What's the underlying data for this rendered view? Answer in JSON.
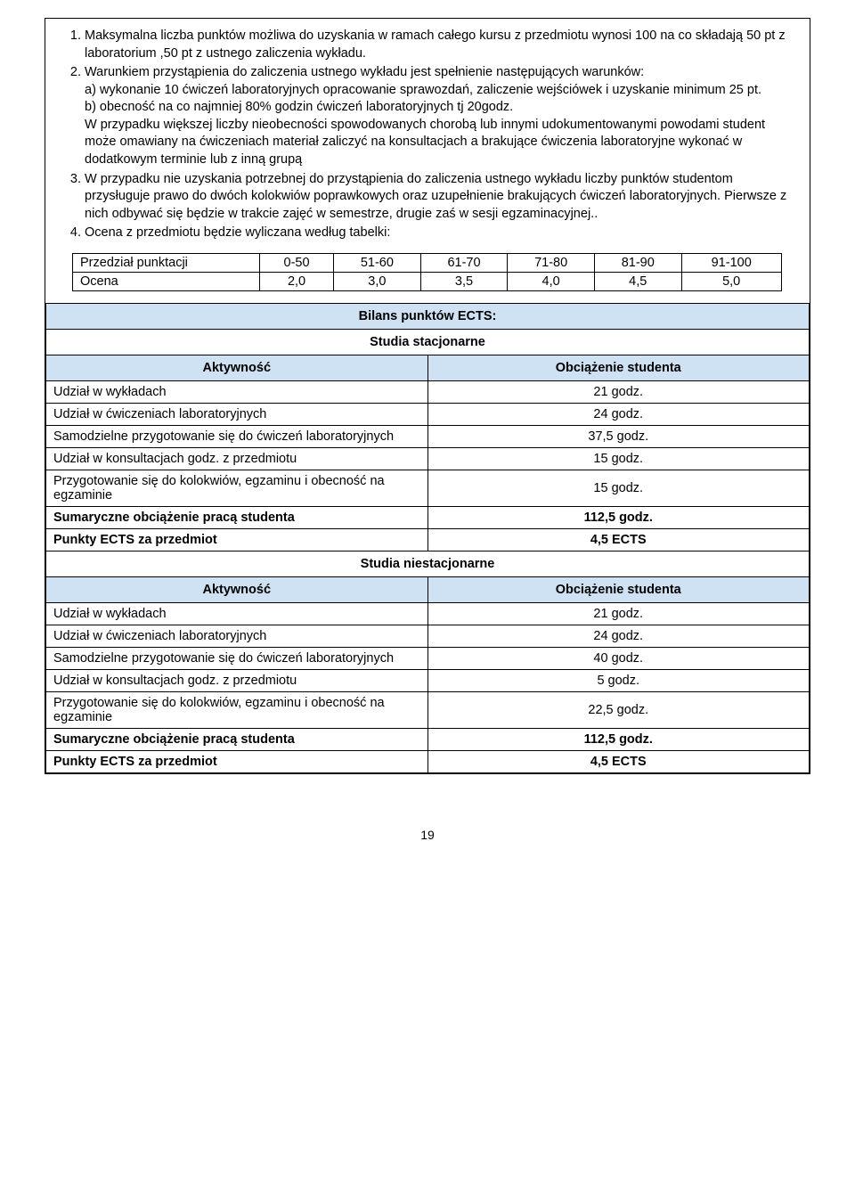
{
  "list": {
    "item1": "Maksymalna liczba punktów możliwa do uzyskania w ramach całego kursu z przedmiotu wynosi 100 na co składają  50 pt z laboratorium ,50 pt z ustnego zaliczenia wykładu.",
    "item2_lead": "Warunkiem przystąpienia do zaliczenia ustnego wykładu jest spełnienie następujących warunków:",
    "item2_a": "a) wykonanie 10 ćwiczeń laboratoryjnych opracowanie sprawozdań, zaliczenie wejściówek   i uzyskanie minimum 25 pt.",
    "item2_b": "b) obecność na co najmniej 80% godzin ćwiczeń laboratoryjnych tj 20godz.",
    "item2_note": "W przypadku większej liczby nieobecności spowodowanych chorobą lub innymi udokumentowanymi powodami student może omawiany na ćwiczeniach materiał zaliczyć na konsultacjach a brakujące ćwiczenia laboratoryjne wykonać w dodatkowym terminie lub z inną grupą",
    "item3": "W przypadku nie uzyskania potrzebnej do przystąpienia do zaliczenia ustnego wykładu liczby punktów studentom  przysługuje prawo do dwóch kolokwiów poprawkowych oraz uzupełnienie brakujących ćwiczeń laboratoryjnych. Pierwsze z nich odbywać się będzie w trakcie zajęć w semestrze, drugie zaś w sesji egzaminacyjnej..",
    "item4": "Ocena z przedmiotu będzie wyliczana według tabelki:"
  },
  "score_table": {
    "row1_label": "Przedział punktacji",
    "row1": [
      "0-50",
      "51-60",
      "61-70",
      "71-80",
      "81-90",
      "91-100"
    ],
    "row2_label": "Ocena",
    "row2": [
      "2,0",
      "3,0",
      "3,5",
      "4,0",
      "4,5",
      "5,0"
    ]
  },
  "ects": {
    "title": "Bilans punktów ECTS:",
    "studia1": "Studia stacjonarne",
    "studia2": "Studia niestacjonarne",
    "col_activity": "Aktywność",
    "col_load": "Obciążenie studenta",
    "rows1": [
      {
        "a": "Udział w wykładach",
        "v": "21 godz."
      },
      {
        "a": "Udział w ćwiczeniach laboratoryjnych",
        "v": "24 godz."
      },
      {
        "a": "Samodzielne przygotowanie się do ćwiczeń laboratoryjnych",
        "v": "37,5 godz."
      },
      {
        "a": "Udział w konsultacjach godz. z przedmiotu",
        "v": "15 godz."
      },
      {
        "a": "Przygotowanie się do kolokwiów, egzaminu i obecność na egzaminie",
        "v": "15 godz."
      }
    ],
    "sum1": {
      "a": "Sumaryczne obciążenie pracą studenta",
      "v": "112,5 godz."
    },
    "pts1": {
      "a": "Punkty ECTS za przedmiot",
      "v": "4,5 ECTS"
    },
    "rows2": [
      {
        "a": "Udział w wykładach",
        "v": "21 godz."
      },
      {
        "a": "Udział w ćwiczeniach laboratoryjnych",
        "v": "24 godz."
      },
      {
        "a": "Samodzielne przygotowanie się do ćwiczeń laboratoryjnych",
        "v": "40 godz."
      },
      {
        "a": "Udział w konsultacjach godz. z przedmiotu",
        "v": "5 godz."
      },
      {
        "a": "Przygotowanie się do kolokwiów, egzaminu i obecność na egzaminie",
        "v": "22,5 godz."
      }
    ],
    "sum2": {
      "a": "Sumaryczne obciążenie pracą studenta",
      "v": "112,5 godz."
    },
    "pts2": {
      "a": "Punkty ECTS za przedmiot",
      "v": "4,5 ECTS"
    }
  },
  "styling": {
    "header_bg": "#cfe2f3",
    "border_color": "#000000",
    "font_family": "Arial",
    "base_font_size_pt": 11
  },
  "page_number": "19"
}
